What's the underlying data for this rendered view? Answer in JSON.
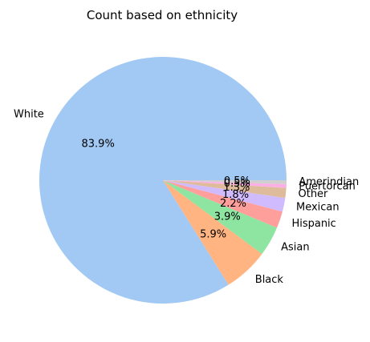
{
  "chart_data": {
    "type": "pie",
    "title": "Count based on ethnicity",
    "categories": [
      "White",
      "Black",
      "Asian",
      "Hispanic",
      "Mexican",
      "Other",
      "Puertorcan",
      "Amerindian"
    ],
    "values": [
      83.9,
      5.9,
      3.9,
      2.2,
      1.8,
      1.3,
      0.5,
      0.5
    ],
    "value_labels": [
      "83.9%",
      "5.9%",
      "3.9%",
      "2.2%",
      "1.8%",
      "1.3%",
      "0.5%",
      "0.5%"
    ],
    "colors": [
      "#a1c9f4",
      "#ffb482",
      "#8de5a1",
      "#ff9f9b",
      "#d0bbff",
      "#debb9b",
      "#fab0e4",
      "#cfcfcf"
    ],
    "start_angle": "0 degrees (3 o'clock), counter-clockwise",
    "legend": "none"
  }
}
